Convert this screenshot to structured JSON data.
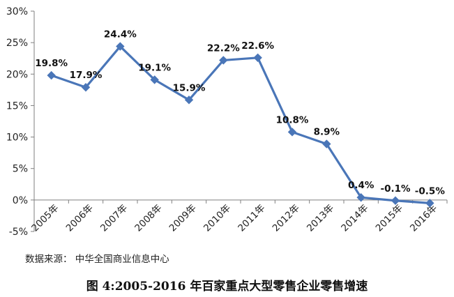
{
  "chart_data": {
    "type": "line",
    "categories": [
      "2005年",
      "2006年",
      "2007年",
      "2008年",
      "2009年",
      "2010年",
      "2011年",
      "2012年",
      "2013年",
      "2014年",
      "2015年",
      "2016年"
    ],
    "values": [
      19.8,
      17.9,
      24.4,
      19.1,
      15.9,
      22.2,
      22.6,
      10.8,
      8.9,
      0.4,
      -0.1,
      -0.5
    ],
    "data_labels": [
      "19.8%",
      "17.9%",
      "24.4%",
      "19.1%",
      "15.9%",
      "22.2%",
      "22.6%",
      "10.8%",
      "8.9%",
      "0.4%",
      "-0.1%",
      "-0.5%"
    ],
    "y_ticks": [
      -5,
      0,
      5,
      10,
      15,
      20,
      25,
      30
    ],
    "y_tick_labels": [
      "-5%",
      "0%",
      "5%",
      "10%",
      "15%",
      "20%",
      "25%",
      "30%"
    ],
    "ylim": [
      -5,
      30
    ],
    "grid": false,
    "legend": "none",
    "line_color": "#4a76b8",
    "title": "图 4:2005-2016 年百家重点大型零售企业零售增速",
    "source": "数据来源：  中华全国商业信息中心"
  }
}
